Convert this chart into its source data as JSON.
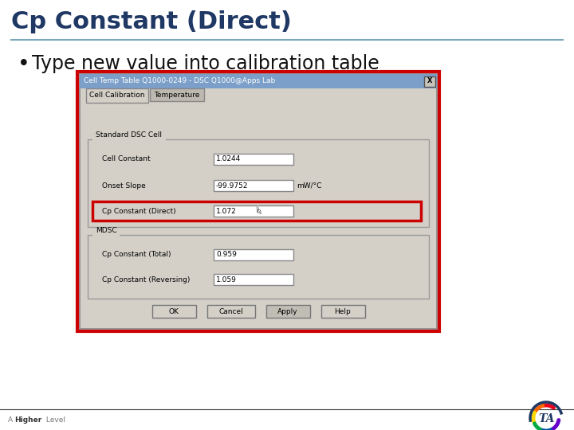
{
  "title": "Cp Constant (Direct)",
  "bullet": "Type new value into calibration table",
  "bg_color": "#ffffff",
  "title_color": "#1F3864",
  "title_fontsize": 22,
  "bullet_fontsize": 17,
  "dialog_title": "Cell Temp Table Q1000-0249 - DSC Q1000@Apps Lab",
  "tab1": "Cell Calibration",
  "tab2": "Temperature",
  "group1": "Standard DSC Cell",
  "group2": "MDSC",
  "field1_label": "Cell Constant",
  "field1_value": "1.0244",
  "field2_label": "Onset Slope",
  "field2_value": "-99.9752",
  "field2_unit": "mW/°C",
  "field3_label": "Cp Constant (Direct)",
  "field3_value": "1.072",
  "field4_label": "Cp Constant (Total)",
  "field4_value": "0.959",
  "field5_label": "Cp Constant (Reversing)",
  "field5_value": "1.059",
  "btn1": "OK",
  "btn2": "Cancel",
  "btn3": "Apply",
  "btn4": "Help",
  "header_blue": "#7B9FC8",
  "dialog_bg": "#D4D0C8",
  "highlight_red": "#CC0000",
  "accent_teal": "#4BACC6",
  "line_color": "#7BA7BC"
}
